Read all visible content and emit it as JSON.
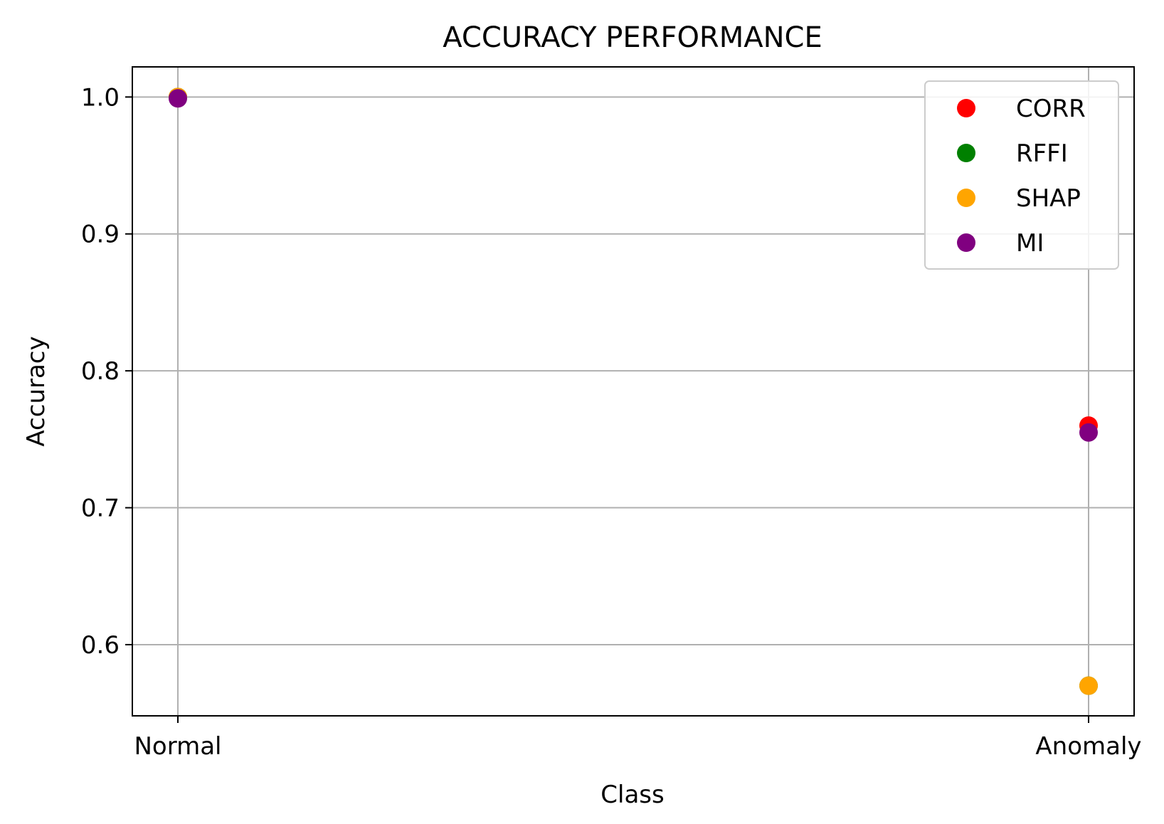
{
  "chart_data": {
    "type": "scatter",
    "title": "ACCURACY PERFORMANCE",
    "xlabel": "Class",
    "ylabel": "Accuracy",
    "categories": [
      "Normal",
      "Anomaly"
    ],
    "ylim": [
      0.548,
      1.022
    ],
    "yticks": [
      "0.6",
      "0.7",
      "0.8",
      "0.9",
      "1.0"
    ],
    "grid": true,
    "legend_position": "top-right",
    "series": [
      {
        "name": "CORR",
        "color": "#ff0000",
        "values": [
          1.0,
          0.76
        ]
      },
      {
        "name": "RFFI",
        "color": "#008000",
        "values": [
          1.0,
          0.57
        ]
      },
      {
        "name": "SHAP",
        "color": "#ffa500",
        "values": [
          1.0,
          0.57
        ]
      },
      {
        "name": "MI",
        "color": "#800080",
        "values": [
          0.999,
          0.755
        ]
      }
    ]
  }
}
